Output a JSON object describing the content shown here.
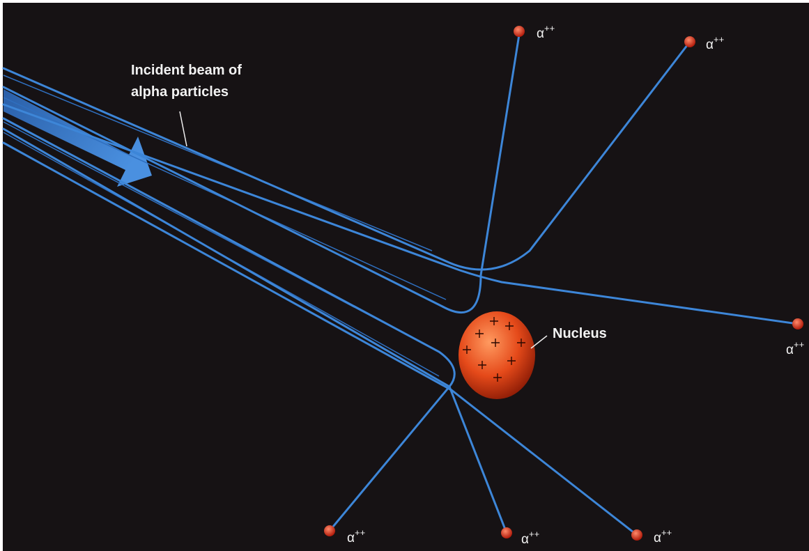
{
  "labels": {
    "beam": [
      "Incident beam of",
      "alpha particles"
    ],
    "nucleus": "Nucleus"
  },
  "particles": [
    {
      "label": "α",
      "charge": "++"
    },
    {
      "label": "α",
      "charge": "++"
    },
    {
      "label": "α",
      "charge": "++"
    },
    {
      "label": "α",
      "charge": "++"
    },
    {
      "label": "α",
      "charge": "++"
    },
    {
      "label": "α",
      "charge": "++"
    }
  ]
}
